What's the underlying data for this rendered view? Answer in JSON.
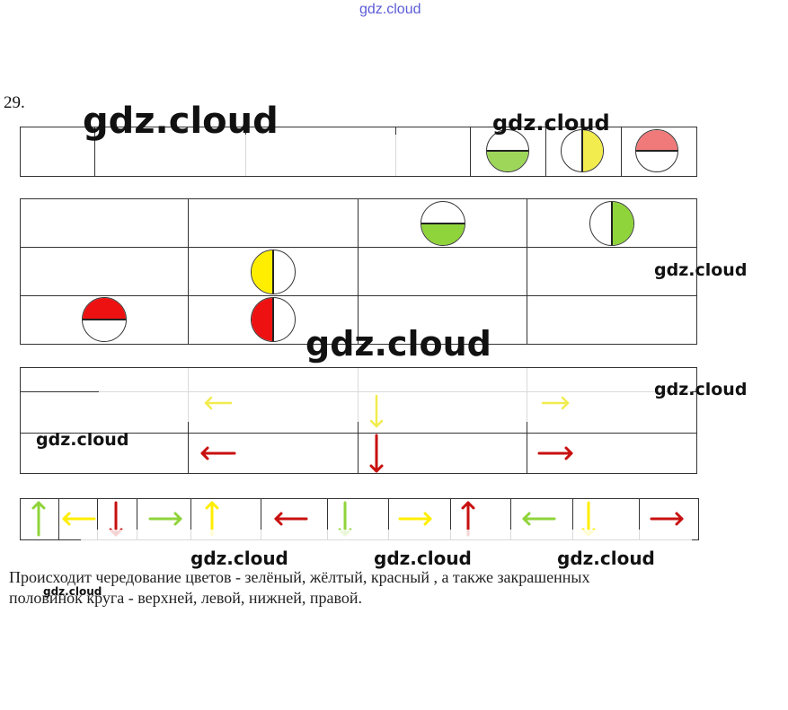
{
  "watermark_top": "gdz.cloud",
  "watermark": "gdz.cloud",
  "problem_number": "29.",
  "caption_line1": "Происходит чередование цветов -  зелёный, жёлтый, красный , а также закрашенных",
  "caption_line2": "половинок круга - верхней, левой, нижней, правой.",
  "colors": {
    "green": "#8fd43a",
    "yellow": "#ffee00",
    "red": "#ee1111",
    "dark_red": "#c81010",
    "light_green": "#9ed65a",
    "light_yellow": "#f2ec4e",
    "pink": "#f07a7a"
  },
  "row1_circles": [
    {
      "color": "green",
      "half": "bottom"
    },
    {
      "color": "yellow",
      "half": "right"
    },
    {
      "color": "red",
      "half": "top"
    }
  ],
  "grid_circles": [
    {
      "row": 1,
      "col": 3,
      "color": "green",
      "half": "bottom"
    },
    {
      "row": 1,
      "col": 4,
      "color": "green",
      "half": "right"
    },
    {
      "row": 2,
      "col": 2,
      "color": "yellow",
      "half": "left"
    },
    {
      "row": 3,
      "col": 1,
      "color": "red",
      "half": "top"
    },
    {
      "row": 3,
      "col": 2,
      "color": "red",
      "half": "left"
    }
  ],
  "arrow_grid": [
    {
      "row": 1,
      "col": 2,
      "dir": "left",
      "color": "yellow"
    },
    {
      "row": 1,
      "col": 3,
      "dir": "down",
      "color": "yellow"
    },
    {
      "row": 1,
      "col": 4,
      "dir": "right",
      "color": "yellow"
    },
    {
      "row": 2,
      "col": 2,
      "dir": "left",
      "color": "red"
    },
    {
      "row": 2,
      "col": 3,
      "dir": "down",
      "color": "red"
    },
    {
      "row": 2,
      "col": 4,
      "dir": "right",
      "color": "red"
    }
  ],
  "arrow_strip": [
    {
      "dir": "up",
      "color": "green"
    },
    {
      "dir": "left",
      "color": "yellow"
    },
    {
      "dir": "down",
      "color": "red"
    },
    {
      "dir": "right",
      "color": "green"
    },
    {
      "dir": "up",
      "color": "yellow"
    },
    {
      "dir": "left",
      "color": "red"
    },
    {
      "dir": "down",
      "color": "green"
    },
    {
      "dir": "right",
      "color": "yellow"
    },
    {
      "dir": "up",
      "color": "red"
    },
    {
      "dir": "left",
      "color": "green"
    },
    {
      "dir": "down",
      "color": "yellow"
    },
    {
      "dir": "right",
      "color": "red"
    }
  ]
}
